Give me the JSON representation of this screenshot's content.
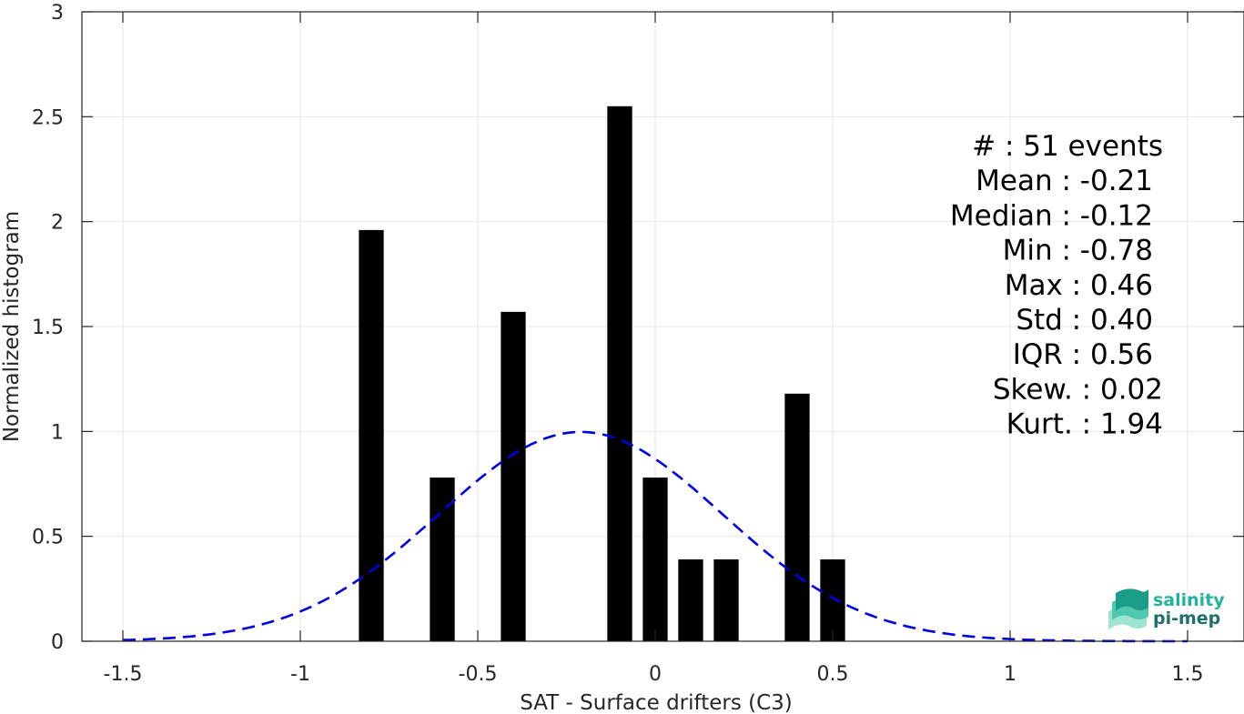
{
  "chart_data": {
    "type": "bar",
    "xlabel": "SAT - Surface drifters (C3)",
    "ylabel": "Normalized histogram",
    "xlim": [
      -1.6,
      1.65
    ],
    "ylim": [
      0,
      3
    ],
    "xticks": [
      "-1.5",
      "-1",
      "-0.5",
      "0",
      "0.5",
      "1",
      "1.5"
    ],
    "xtick_values": [
      -1.5,
      -1,
      -0.5,
      0,
      0.5,
      1,
      1.5
    ],
    "yticks": [
      "0",
      "0.5",
      "1",
      "1.5",
      "2",
      "2.5",
      "3"
    ],
    "ytick_values": [
      0,
      0.5,
      1,
      1.5,
      2,
      2.5,
      3
    ],
    "grid": true,
    "bar_width": 0.07,
    "bar_color": "#000000",
    "bars": [
      {
        "x": -0.8,
        "value": 1.96
      },
      {
        "x": -0.6,
        "value": 0.78
      },
      {
        "x": -0.4,
        "value": 1.57
      },
      {
        "x": -0.1,
        "value": 2.55
      },
      {
        "x": 0.0,
        "value": 0.78
      },
      {
        "x": 0.1,
        "value": 0.39
      },
      {
        "x": 0.2,
        "value": 0.39
      },
      {
        "x": 0.4,
        "value": 1.18
      },
      {
        "x": 0.5,
        "value": 0.39
      }
    ],
    "gaussian_fit": {
      "mean": -0.21,
      "std": 0.4,
      "x_range": [
        -1.5,
        1.5
      ],
      "color": "#0000e0",
      "style": "dashed"
    },
    "stats": [
      "#  : 51 events",
      "Mean : -0.21",
      "Median : -0.12",
      "Min : -0.78",
      "Max : 0.46",
      "Std : 0.40",
      "IQR : 0.56",
      "Skew. : 0.02",
      "Kurt. : 1.94"
    ]
  },
  "logo": {
    "line1": "salinity",
    "line2": "pi-mep",
    "color1": "#23b39a",
    "color2": "#1f6f6a"
  }
}
